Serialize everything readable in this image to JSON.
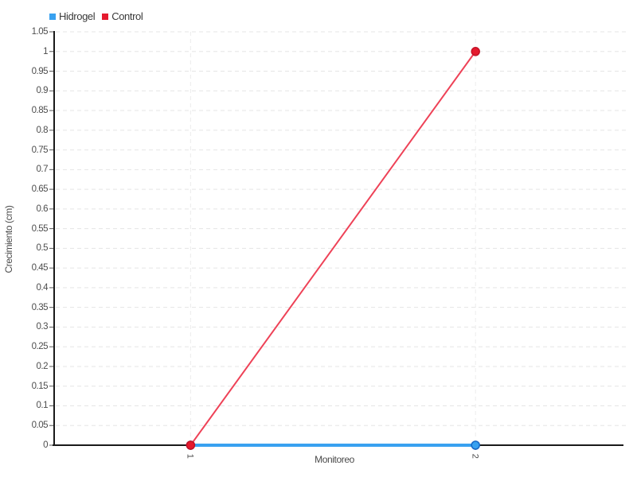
{
  "chart_data": {
    "type": "line",
    "categories": [
      "1",
      "2"
    ],
    "series": [
      {
        "name": "Hidrogel",
        "values": [
          0,
          0
        ],
        "color": "#38a1f0",
        "line_color": "#38a1f0",
        "point_border": "#1868c6",
        "line_width": 4
      },
      {
        "name": "Control",
        "values": [
          0,
          1
        ],
        "color": "#e51a2e",
        "line_color": "#ee4257",
        "point_border": "#c41226",
        "line_width": 2
      }
    ],
    "xlabel": "Monitoreo",
    "ylabel": "Crecimiento (cm)",
    "ylim": [
      0,
      1.05
    ],
    "y_ticks": [
      "0",
      "0.05",
      "0.1",
      "0.15",
      "0.2",
      "0.25",
      "0.3",
      "0.35",
      "0.4",
      "0.45",
      "0.5",
      "0.55",
      "0.6",
      "0.65",
      "0.7",
      "0.75",
      "0.8",
      "0.85",
      "0.9",
      "0.95",
      "1",
      "1.05"
    ],
    "x_tick_rotation_deg": 90,
    "grid": true,
    "gridline_style": "dashed",
    "legend_position": "top-left",
    "colors": {
      "h_gridline": "#e5e5e5",
      "v_gridline": "#ececec",
      "axis_line": "#1a1a1a",
      "tick_mark": "#555555",
      "tick_text": "#4d4d4d"
    }
  }
}
